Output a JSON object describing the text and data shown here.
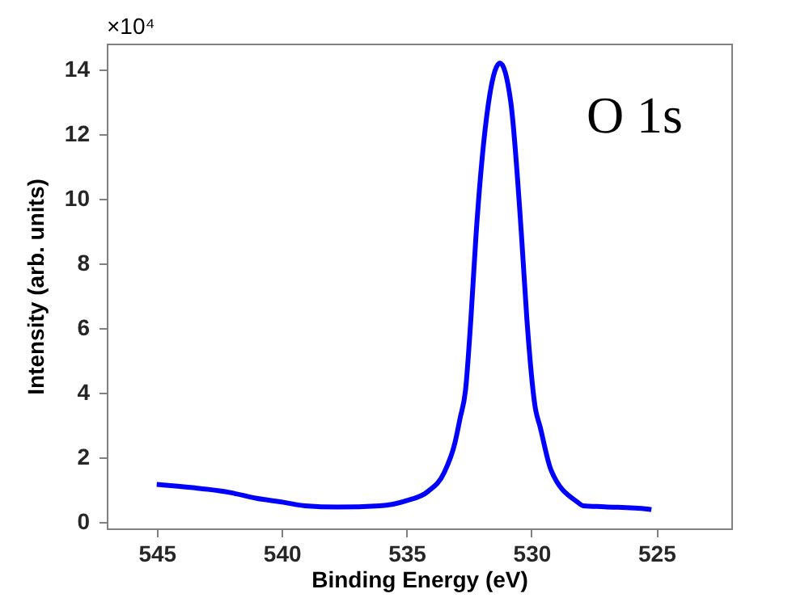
{
  "chart_data": {
    "type": "line",
    "xlabel": "Binding Energy (eV)",
    "ylabel": "Intensity (arb. units)",
    "annotations": [
      "×10⁴",
      "O 1s"
    ],
    "x": [
      545,
      543.56,
      542.06,
      541.0,
      539.93,
      539.07,
      537.78,
      536.07,
      535.0,
      534.15,
      533.5,
      533.07,
      532.86,
      532.64,
      532.43,
      532.22,
      531.68,
      531.26,
      530.83,
      530.4,
      530.18,
      529.86,
      529.65,
      529.22,
      528.15,
      527.93,
      527.08,
      525.37,
      525.2
    ],
    "series": [
      {
        "color": "#0000ff",
        "values": [
          1.16,
          1.06,
          0.91,
          0.73,
          0.61,
          0.5,
          0.46,
          0.5,
          0.66,
          0.94,
          1.52,
          2.43,
          3.2,
          4.08,
          6.23,
          8.87,
          13.17,
          14.2,
          13.0,
          8.87,
          6.23,
          3.59,
          2.93,
          1.61,
          0.61,
          0.5,
          0.47,
          0.4,
          0.38
        ]
      }
    ],
    "xlim": [
      547,
      522
    ],
    "xticks": [
      545,
      540,
      535,
      530,
      525
    ],
    "ylim": [
      -0.2,
      14.8
    ],
    "yticks": [
      0,
      2,
      4,
      6,
      8,
      10,
      12,
      14
    ],
    "grid": false,
    "legend": false,
    "marker": "none",
    "line_style": "solid"
  }
}
